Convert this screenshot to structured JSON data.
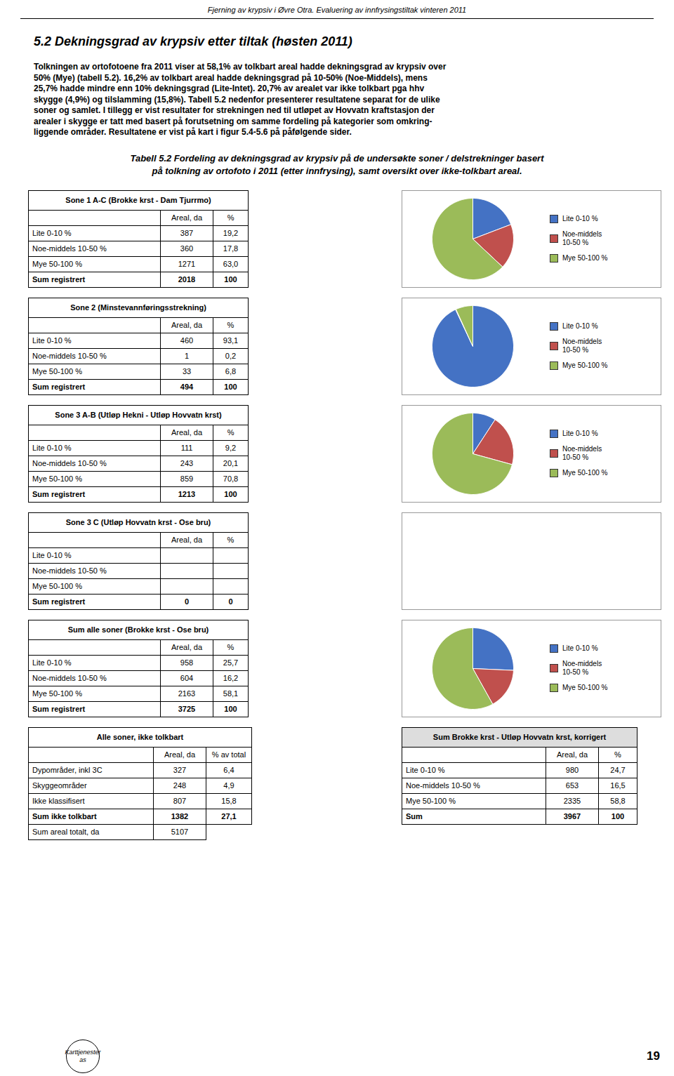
{
  "header": "Fjerning av krypsiv i Øvre Otra. Evaluering av innfrysingstiltak vinteren 2011",
  "section_title": "5.2  Dekningsgrad av krypsiv etter tiltak (høsten 2011)",
  "body_lines": [
    "Tolkningen av ortofotoene fra 2011 viser at 58,1% av tolkbart areal hadde dekningsgrad av krypsiv over",
    "50% (Mye) (tabell 5.2). 16,2% av tolkbart areal hadde dekningsgrad på 10-50% (Noe-Middels), mens",
    "25,7% hadde mindre enn 10% dekningsgrad (Lite-Intet). 20,7% av arealet var ikke tolkbart pga hhv",
    "skygge (4,9%) og tilslamming (15,8%). Tabell 5.2 nedenfor presenterer resultatene separat for de ulike",
    "soner og samlet. I tillegg er vist resultater for strekningen ned til utløpet av Hovvatn kraftstasjon der",
    "arealer i skygge er tatt med basert på forutsetning om samme fordeling på kategorier som omkring-",
    "liggende områder. Resultatene er vist på kart i figur 5.4-5.6 på påfølgende sider."
  ],
  "caption_lines": [
    "Tabell 5.2 Fordeling av dekningsgrad av krypsiv på de undersøkte soner / delstrekninger basert",
    "på tolkning av ortofoto i 2011 (etter innfrysing), samt oversikt over ikke-tolkbart areal."
  ],
  "chart_data": [
    {
      "type": "pie",
      "title": "Sone 1 A-C (Brokke krst - Dam Tjurrmo)",
      "categories": [
        "Lite 0-10 %",
        "Noe-middels\n10-50 %",
        "Mye 50-100 %"
      ],
      "values": [
        19.2,
        17.8,
        63.0
      ],
      "colors": [
        "#4472C4",
        "#C0504D",
        "#9BBB59"
      ],
      "legend": "right",
      "table": {
        "columns": [
          null,
          "Areal, da",
          "%"
        ],
        "rows": [
          [
            "Lite 0-10 %",
            "387",
            "19,2"
          ],
          [
            "Noe-middels 10-50 %",
            "360",
            "17,8"
          ],
          [
            "Mye 50-100 %",
            "1271",
            "63,0"
          ],
          [
            "Sum registrert",
            "2018",
            "100"
          ]
        ]
      }
    },
    {
      "type": "pie",
      "title": "Sone 2 (Minstevannføringsstrekning)",
      "categories": [
        "Lite 0-10 %",
        "Noe-middels\n10-50 %",
        "Mye 50-100 %"
      ],
      "values": [
        93.1,
        0.2,
        6.8
      ],
      "colors": [
        "#4472C4",
        "#C0504D",
        "#9BBB59"
      ],
      "legend": "right",
      "table": {
        "columns": [
          null,
          "Areal, da",
          "%"
        ],
        "rows": [
          [
            "Lite 0-10 %",
            "460",
            "93,1"
          ],
          [
            "Noe-middels 10-50 %",
            "1",
            "0,2"
          ],
          [
            "Mye 50-100 %",
            "33",
            "6,8"
          ],
          [
            "Sum registrert",
            "494",
            "100"
          ]
        ]
      }
    },
    {
      "type": "pie",
      "title": "Sone 3 A-B (Utløp Hekni - Utløp Hovvatn krst)",
      "categories": [
        "Lite 0-10 %",
        "Noe-middels\n10-50 %",
        "Mye 50-100 %"
      ],
      "values": [
        9.2,
        20.1,
        70.8
      ],
      "colors": [
        "#4472C4",
        "#C0504D",
        "#9BBB59"
      ],
      "legend": "right",
      "table": {
        "columns": [
          null,
          "Areal, da",
          "%"
        ],
        "rows": [
          [
            "Lite 0-10 %",
            "111",
            "9,2"
          ],
          [
            "Noe-middels 10-50 %",
            "243",
            "20,1"
          ],
          [
            "Mye 50-100 %",
            "859",
            "70,8"
          ],
          [
            "Sum registrert",
            "1213",
            "100"
          ]
        ]
      }
    },
    {
      "type": "pie",
      "title": "Sone 3 C (Utløp Hovvatn krst - Ose bru)",
      "values": null,
      "table": {
        "columns": [
          null,
          "Areal, da",
          "%"
        ],
        "rows": [
          [
            "Lite 0-10 %",
            null,
            null
          ],
          [
            "Noe-middels 10-50 %",
            null,
            null
          ],
          [
            "Mye 50-100 %",
            null,
            null
          ],
          [
            "Sum registrert",
            "0",
            "0"
          ]
        ]
      }
    },
    {
      "type": "pie",
      "title": "Sum alle soner (Brokke krst - Ose bru)",
      "categories": [
        "Lite 0-10 %",
        "Noe-middels\n10-50 %",
        "Mye 50-100 %"
      ],
      "values": [
        25.7,
        16.2,
        58.1
      ],
      "colors": [
        "#4472C4",
        "#C0504D",
        "#9BBB59"
      ],
      "legend": "right",
      "table": {
        "columns": [
          null,
          "Areal, da",
          "%"
        ],
        "rows": [
          [
            "Lite 0-10 %",
            "958",
            "25,7"
          ],
          [
            "Noe-middels 10-50 %",
            "604",
            "16,2"
          ],
          [
            "Mye 50-100 %",
            "2163",
            "58,1"
          ],
          [
            "Sum registrert",
            "3725",
            "100"
          ]
        ]
      }
    }
  ],
  "not_tolkbart": {
    "title": "Alle soner, ikke tolkbart",
    "columns": [
      null,
      "Areal, da",
      "% av total"
    ],
    "rows": [
      [
        "Dypområder, inkl 3C",
        "327",
        "6,4"
      ],
      [
        "Skyggeområder",
        "248",
        "4,9"
      ],
      [
        "Ikke klassifisert",
        "807",
        "15,8"
      ],
      [
        "Sum ikke tolkbart",
        "1382",
        "27,1"
      ]
    ],
    "sum_row": [
      "Sum areal totalt, da",
      "5107"
    ]
  },
  "korrigert": {
    "title": "Sum Brokke krst - Utløp Hovvatn krst, korrigert",
    "columns": [
      null,
      "Areal, da",
      "%"
    ],
    "rows": [
      [
        "Lite 0-10 %",
        "980",
        "24,7"
      ],
      [
        "Noe-middels 10-50 %",
        "653",
        "16,5"
      ],
      [
        "Mye 50-100 %",
        "2335",
        "58,8"
      ],
      [
        "Sum",
        "3967",
        "100"
      ]
    ]
  },
  "footer": {
    "logo_lines": [
      "Karttjenester",
      "as"
    ],
    "page_number": "19"
  }
}
